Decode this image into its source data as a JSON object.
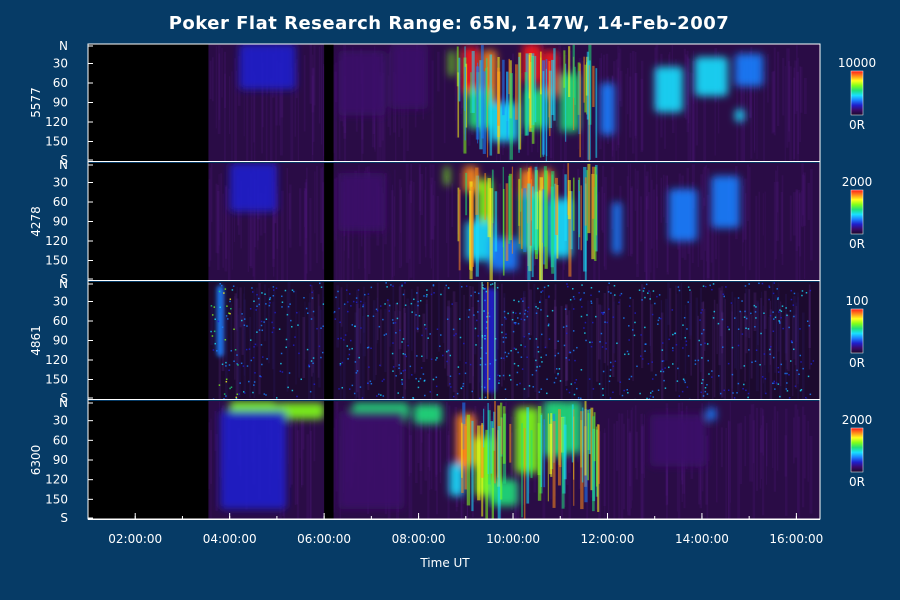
{
  "chart_data": {
    "type": "heatmap",
    "title": "Poker Flat Research Range: 65N, 147W, 14-Feb-2007",
    "xlabel": "Time UT",
    "x_ticks": [
      "02:00:00",
      "04:00:00",
      "06:00:00",
      "08:00:00",
      "10:00:00",
      "12:00:00",
      "14:00:00",
      "16:00:00"
    ],
    "x_tick_hours": [
      2,
      4,
      6,
      8,
      10,
      12,
      14,
      16
    ],
    "x_range_hours": [
      1.0,
      16.5
    ],
    "y_ticks": [
      "N",
      "30",
      "60",
      "90",
      "120",
      "150",
      "S"
    ],
    "y_tick_values": [
      0,
      30,
      60,
      90,
      120,
      150,
      180
    ],
    "y_range": [
      0,
      180
    ],
    "panels": [
      {
        "name": "5577",
        "colorbar_max": "10000",
        "colorbar_min": "0R"
      },
      {
        "name": "4278",
        "colorbar_max": "2000",
        "colorbar_min": "0R"
      },
      {
        "name": "4861",
        "colorbar_max": "100",
        "colorbar_min": "0R"
      },
      {
        "name": "6300",
        "colorbar_max": "2000",
        "colorbar_min": "0R"
      }
    ],
    "colormap": [
      "#1a0a2a",
      "#3a0a6a",
      "#1f1fcc",
      "#1a7fff",
      "#19e0ff",
      "#1fe07a",
      "#7fff1a",
      "#ffff1a",
      "#ff8a1a",
      "#ff1a1a"
    ],
    "data_start_hour": 3.55,
    "gap_hours": [
      6.0,
      6.2
    ]
  }
}
